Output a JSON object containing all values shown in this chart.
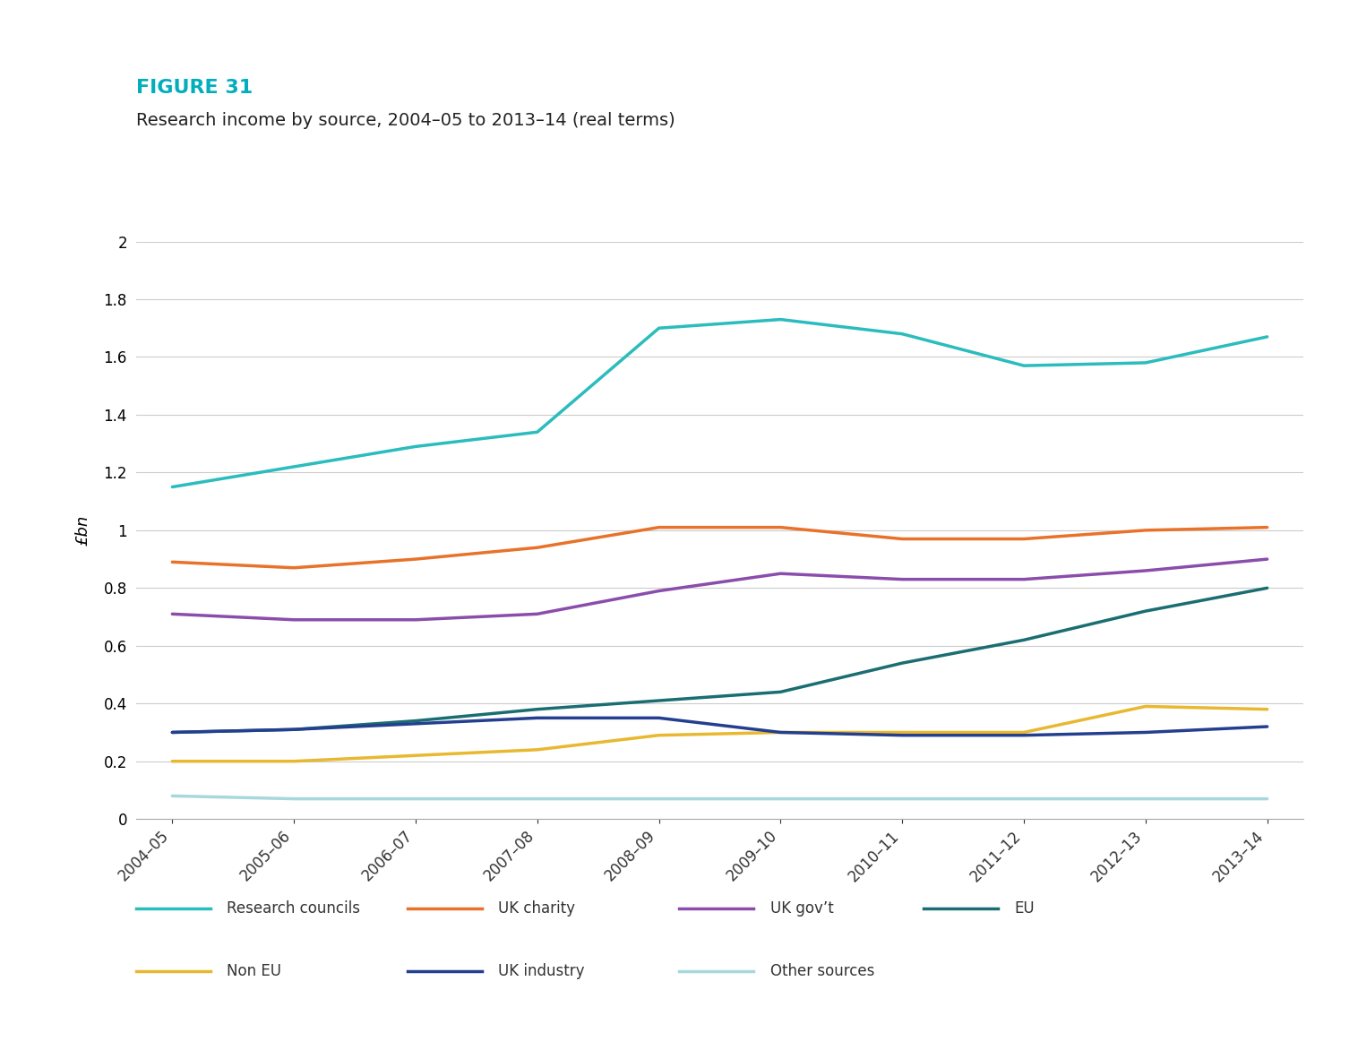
{
  "figure_label": "FIGURE 31",
  "figure_label_color": "#00AEBD",
  "title": "Research income by source, 2004–05 to 2013–14 (real terms)",
  "ylabel": "£bn",
  "x_labels": [
    "2004–05",
    "2005–06",
    "2006–07",
    "2007–08",
    "2008–09",
    "2009–10",
    "2010–11",
    "2011–12",
    "2012–13",
    "2013–14"
  ],
  "series": {
    "Research councils": {
      "color": "#2BBCBD",
      "linewidth": 2.5,
      "values": [
        1.15,
        1.22,
        1.29,
        1.34,
        1.7,
        1.73,
        1.68,
        1.57,
        1.58,
        1.67
      ]
    },
    "UK charity": {
      "color": "#E8722A",
      "linewidth": 2.5,
      "values": [
        0.89,
        0.87,
        0.9,
        0.94,
        1.01,
        1.01,
        0.97,
        0.97,
        1.0,
        1.01
      ]
    },
    "UK gov’t": {
      "color": "#8B4DAB",
      "linewidth": 2.5,
      "values": [
        0.71,
        0.69,
        0.69,
        0.71,
        0.79,
        0.85,
        0.83,
        0.83,
        0.86,
        0.9
      ]
    },
    "EU": {
      "color": "#1A6E72",
      "linewidth": 2.5,
      "values": [
        0.3,
        0.31,
        0.34,
        0.38,
        0.41,
        0.44,
        0.54,
        0.62,
        0.72,
        0.8
      ]
    },
    "Non EU": {
      "color": "#E8B830",
      "linewidth": 2.5,
      "values": [
        0.2,
        0.2,
        0.22,
        0.24,
        0.29,
        0.3,
        0.3,
        0.3,
        0.39,
        0.38
      ]
    },
    "UK industry": {
      "color": "#243F8F",
      "linewidth": 2.5,
      "values": [
        0.3,
        0.31,
        0.33,
        0.35,
        0.35,
        0.3,
        0.29,
        0.29,
        0.3,
        0.32
      ]
    },
    "Other sources": {
      "color": "#A8D8DC",
      "linewidth": 2.5,
      "values": [
        0.08,
        0.07,
        0.07,
        0.07,
        0.07,
        0.07,
        0.07,
        0.07,
        0.07,
        0.07
      ]
    }
  },
  "ylim": [
    0,
    2.0
  ],
  "yticks": [
    0,
    0.2,
    0.4,
    0.6,
    0.8,
    1.0,
    1.2,
    1.4,
    1.6,
    1.8,
    2.0
  ],
  "background_color": "#ffffff",
  "grid_color": "#cccccc",
  "legend_row1": [
    "Research councils",
    "UK charity",
    "UK gov’t",
    "EU"
  ],
  "legend_row2": [
    "Non EU",
    "UK industry",
    "Other sources"
  ],
  "figure_label_fontsize": 16,
  "title_fontsize": 14,
  "tick_fontsize": 12,
  "ylabel_fontsize": 13
}
